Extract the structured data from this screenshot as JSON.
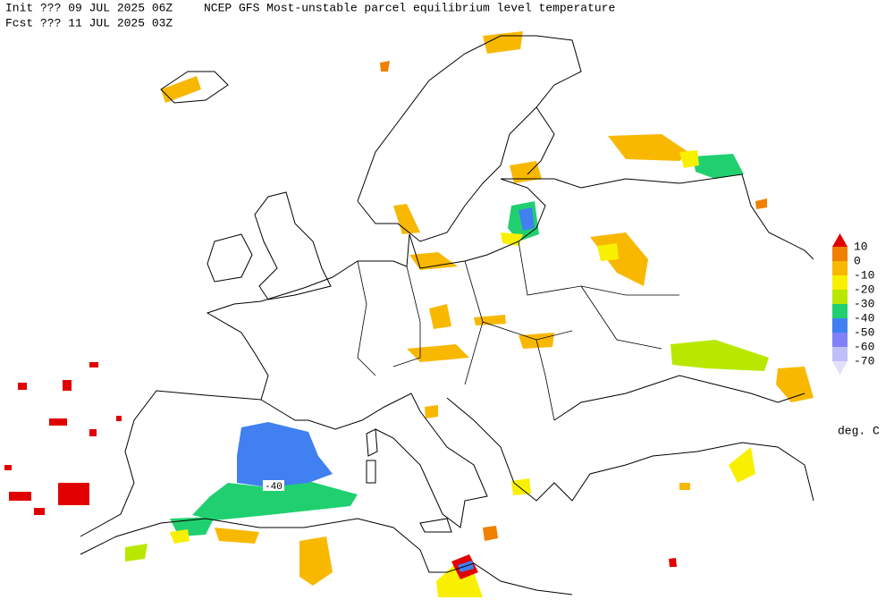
{
  "header": {
    "init": "Init  ??? 09 JUL 2025 06Z",
    "title": "NCEP GFS Most-unstable parcel equilibrium level temperature",
    "forecast": "Fcst ??? 11 JUL 2025 03Z"
  },
  "colorbar": {
    "ticks": [
      10,
      0,
      -10,
      -20,
      -30,
      -40,
      -50,
      -60,
      -70
    ],
    "colors": [
      "#e00000",
      "#f08000",
      "#f8b800",
      "#f8f000",
      "#b8e800",
      "#20d070",
      "#4080f0",
      "#8080f8",
      "#c0c0f8",
      "#e0e0f8"
    ],
    "units": "deg. C"
  },
  "contour_label": -40
}
